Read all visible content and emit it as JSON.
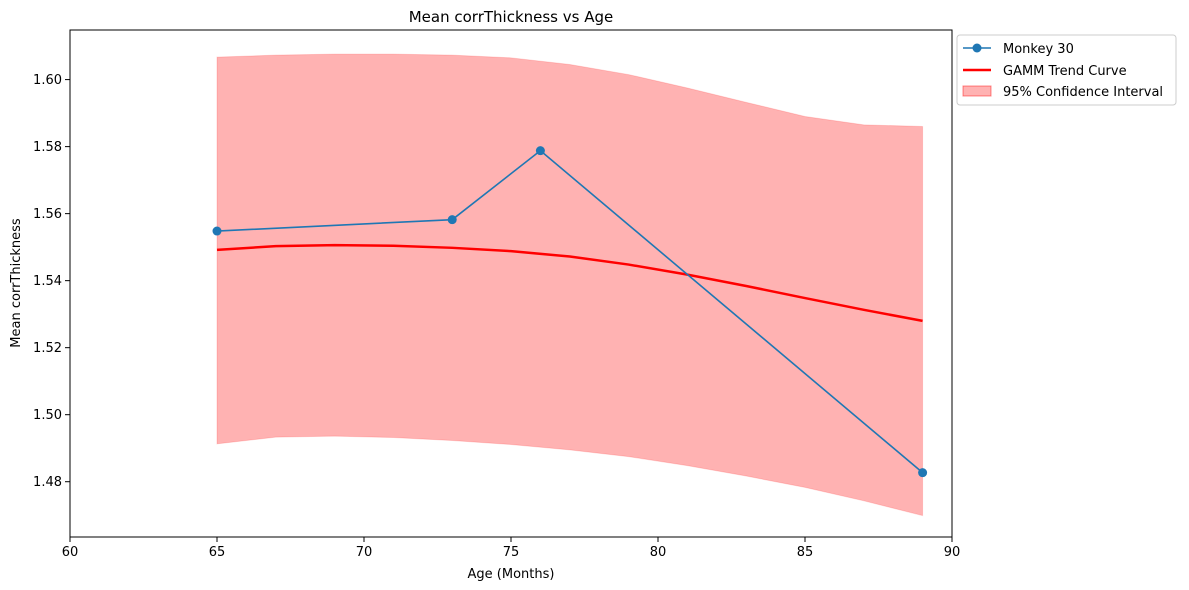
{
  "chart_data": {
    "type": "line",
    "title": "Mean corrThickness vs Age",
    "xlabel": "Age (Months)",
    "ylabel": "Mean corrThickness",
    "xlim": [
      60,
      90
    ],
    "ylim": [
      1.4635,
      1.6148
    ],
    "xticks": [
      60,
      65,
      70,
      75,
      80,
      85,
      90
    ],
    "xtick_labels": [
      "60",
      "65",
      "70",
      "75",
      "80",
      "85",
      "90"
    ],
    "yticks": [
      1.48,
      1.5,
      1.52,
      1.54,
      1.56,
      1.58,
      1.6
    ],
    "ytick_labels": [
      "1.48",
      "1.50",
      "1.52",
      "1.54",
      "1.56",
      "1.58",
      "1.60"
    ],
    "grid": false,
    "legend_position": "outside upper-right",
    "series": [
      {
        "name": "Monkey 30",
        "kind": "line-markers",
        "color": "#1f77b4",
        "x": [
          65,
          73,
          76,
          89
        ],
        "y": [
          1.5548,
          1.5582,
          1.5788,
          1.4827
        ]
      },
      {
        "name": "GAMM Trend Curve",
        "kind": "line",
        "color": "#ff0000",
        "x": [
          65,
          67,
          69,
          71,
          73,
          75,
          77,
          79,
          81,
          83,
          85,
          87,
          89
        ],
        "y": [
          1.5492,
          1.5503,
          1.5506,
          1.5504,
          1.5498,
          1.5488,
          1.5472,
          1.5448,
          1.5418,
          1.5384,
          1.5348,
          1.5313,
          1.528
        ]
      },
      {
        "name": "95% Confidence Interval",
        "kind": "band",
        "color": "#ff0000",
        "opacity": 0.3,
        "x": [
          65,
          67,
          69,
          71,
          73,
          75,
          77,
          79,
          81,
          83,
          85,
          87,
          89
        ],
        "upper": [
          1.6067,
          1.6073,
          1.6076,
          1.6076,
          1.6073,
          1.6065,
          1.6045,
          1.6015,
          1.5975,
          1.5932,
          1.589,
          1.5865,
          1.586
        ],
        "lower": [
          1.4913,
          1.4933,
          1.4936,
          1.4932,
          1.4923,
          1.4911,
          1.4895,
          1.4875,
          1.4848,
          1.4817,
          1.4783,
          1.4743,
          1.4699
        ]
      }
    ]
  }
}
